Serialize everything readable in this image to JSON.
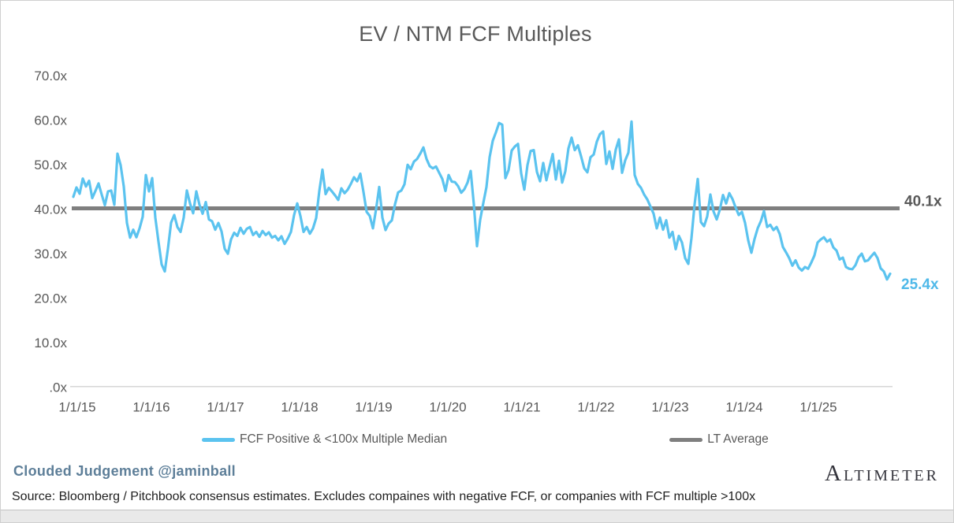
{
  "title": "EV / NTM FCF Multiples",
  "legend": {
    "items": [
      {
        "label": "FCF Positive & <100x Multiple Median",
        "color": "#5bc3ef"
      },
      {
        "label": "LT Average",
        "color": "#7f7f7f"
      }
    ]
  },
  "annotations": {
    "lt_average_label": "40.1x",
    "last_value_label": "25.4x"
  },
  "footer": {
    "byline": "Clouded Judgement @jaminball",
    "brand": "Altimeter",
    "source": "Source: Bloomberg / Pitchbook consensus estimates. Excludes compaines with negative FCF, or companies with FCF multiple >100x"
  },
  "colors": {
    "series_blue": "#5bc3ef",
    "last_value_blue": "#4fb9e9",
    "lt_gray": "#7f7f7f",
    "text_gray": "#595959",
    "axis_line": "#d6d6d6"
  },
  "chart_data": {
    "type": "line",
    "title": "EV / NTM FCF Multiples",
    "ylabel": "",
    "xlabel": "",
    "ylim": [
      0,
      70
    ],
    "grid": false,
    "legend_position": "bottom",
    "y_ticks": [
      "70.0x",
      "60.0x",
      "50.0x",
      "40.0x",
      "30.0x",
      "20.0x",
      "10.0x",
      ".0x"
    ],
    "y_tick_values": [
      70,
      60,
      50,
      40,
      30,
      20,
      10,
      0
    ],
    "x_ticks": [
      "1/1/15",
      "1/1/16",
      "1/1/17",
      "1/1/18",
      "1/1/19",
      "1/1/20",
      "1/1/21",
      "1/1/22",
      "1/1/23",
      "1/1/24",
      "1/1/25"
    ],
    "x_tick_years": [
      2015,
      2016,
      2017,
      2018,
      2019,
      2020,
      2021,
      2022,
      2023,
      2024,
      2025
    ],
    "lt_average": 40.1,
    "last_value": 25.4,
    "series": [
      {
        "name": "FCF Positive & <100x Multiple Median",
        "type": "line",
        "x_start_year": 2014.947,
        "x_step_years": 0.042553,
        "values": [
          42.7,
          44.8,
          43.4,
          46.8,
          45.0,
          46.3,
          42.4,
          44.0,
          45.7,
          43.2,
          40.8,
          43.9,
          44.1,
          40.9,
          52.4,
          49.8,
          45.0,
          36.8,
          33.5,
          35.3,
          33.6,
          35.6,
          38.2,
          47.6,
          43.9,
          46.9,
          38.0,
          32.6,
          27.5,
          25.9,
          31.0,
          36.9,
          38.6,
          35.9,
          34.8,
          38.0,
          44.1,
          41.2,
          39.0,
          43.9,
          40.9,
          38.9,
          41.5,
          37.6,
          37.2,
          35.3,
          36.8,
          34.9,
          31.0,
          29.9,
          33.1,
          34.6,
          33.9,
          35.7,
          34.4,
          35.5,
          35.9,
          34.1,
          34.8,
          33.7,
          35.0,
          34.1,
          34.7,
          33.5,
          33.9,
          32.9,
          33.8,
          32.1,
          33.3,
          34.8,
          38.6,
          41.2,
          38.4,
          34.8,
          35.9,
          34.4,
          35.6,
          37.9,
          44.0,
          48.8,
          43.3,
          44.7,
          43.9,
          43.0,
          42.0,
          44.6,
          43.5,
          44.3,
          45.6,
          47.1,
          46.2,
          47.9,
          43.8,
          39.3,
          38.4,
          35.6,
          39.9,
          44.9,
          38.0,
          35.2,
          36.7,
          37.4,
          41.0,
          43.7,
          44.1,
          45.5,
          49.9,
          48.9,
          50.6,
          51.2,
          52.4,
          53.8,
          51.2,
          49.6,
          49.1,
          49.5,
          48.1,
          46.7,
          44.0,
          47.6,
          46.1,
          46.0,
          45.1,
          43.6,
          44.4,
          45.9,
          48.5,
          41.0,
          31.6,
          37.5,
          41.3,
          44.9,
          51.6,
          55.3,
          57.2,
          59.3,
          58.9,
          46.9,
          48.7,
          53.1,
          54.0,
          54.6,
          48.0,
          44.3,
          49.8,
          53.0,
          53.2,
          48.3,
          46.2,
          50.3,
          46.4,
          49.4,
          52.3,
          46.6,
          50.8,
          45.9,
          48.4,
          53.6,
          56.0,
          53.2,
          54.3,
          51.8,
          49.1,
          48.2,
          51.6,
          52.2,
          55.1,
          56.8,
          57.4,
          50.1,
          52.9,
          49.0,
          53.3,
          55.6,
          48.1,
          50.9,
          52.6,
          59.6,
          47.6,
          45.6,
          44.7,
          43.2,
          42.1,
          40.5,
          38.9,
          35.6,
          38.0,
          35.3,
          37.4,
          33.5,
          34.8,
          30.9,
          33.9,
          32.4,
          28.9,
          27.6,
          33.4,
          41.0,
          46.7,
          37.0,
          36.1,
          38.3,
          43.2,
          39.4,
          37.6,
          39.8,
          43.1,
          41.2,
          43.5,
          42.2,
          40.3,
          38.6,
          39.3,
          36.8,
          32.9,
          30.1,
          33.2,
          35.6,
          37.2,
          39.5,
          35.9,
          36.4,
          35.2,
          35.9,
          34.3,
          31.4,
          30.2,
          28.9,
          27.2,
          28.4,
          26.8,
          26.1,
          26.9,
          26.5,
          27.9,
          29.5,
          32.4,
          33.1,
          33.6,
          32.6,
          33.1,
          31.3,
          30.6,
          28.6,
          29.0,
          26.9,
          26.5,
          26.4,
          27.3,
          29.1,
          29.9,
          28.2,
          28.4,
          29.3,
          30.1,
          28.9,
          26.6,
          25.9,
          24.1,
          25.4
        ]
      },
      {
        "name": "LT Average",
        "type": "horizontal-line",
        "value": 40.1
      }
    ]
  }
}
